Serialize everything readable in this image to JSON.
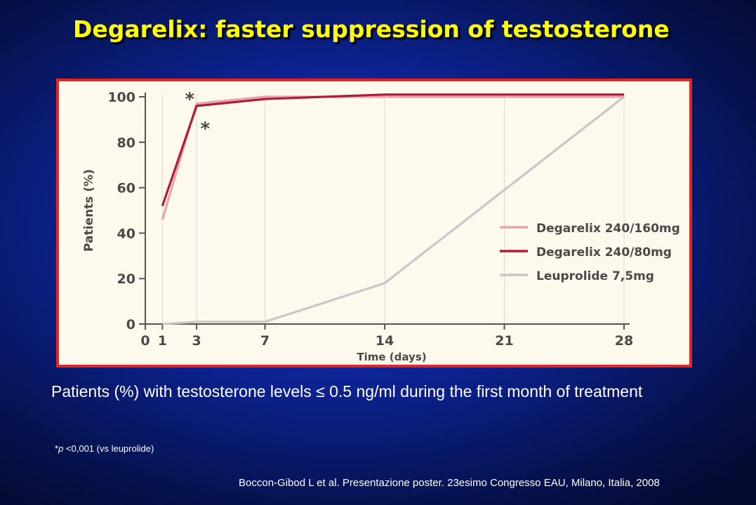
{
  "slide": {
    "title": "Degarelix: faster suppression of testosterone",
    "caption": "Patients (%) with testosterone levels ≤ 0.5 ng/ml during the first month of treatment",
    "footnote_marker": "*",
    "footnote_p": "p",
    "footnote_rest": " <0,001 (vs leuprolide)",
    "citation": "Boccon-Gibod L et al. Presentazione poster. 23esimo Congresso EAU, Milano, Italia, 2008"
  },
  "chart_data": {
    "type": "line",
    "xlabel": "Time (days)",
    "ylabel": "Patients (%)",
    "xlim": [
      0,
      28
    ],
    "ylim": [
      0,
      100
    ],
    "xticks": [
      0,
      1,
      3,
      7,
      14,
      21,
      28
    ],
    "yticks": [
      0,
      20,
      40,
      60,
      80,
      100
    ],
    "grid": "vertical",
    "legend_position": "right",
    "series": [
      {
        "name": "Degarelix 240/160mg",
        "color": "#e8a4a8",
        "x": [
          1,
          3,
          7,
          14,
          28
        ],
        "y": [
          46,
          97,
          100,
          100,
          100
        ]
      },
      {
        "name": "Degarelix 240/80mg",
        "color": "#b01c3a",
        "x": [
          1,
          3,
          7,
          14,
          28
        ],
        "y": [
          52,
          96,
          99,
          101,
          101
        ]
      },
      {
        "name": "Leuprolide 7,5mg",
        "color": "#c8c8c8",
        "x": [
          1,
          3,
          7,
          14,
          28
        ],
        "y": [
          0,
          1,
          1,
          18,
          100
        ]
      }
    ],
    "annotations": [
      {
        "text": "*",
        "x": 2.6,
        "y": 100
      },
      {
        "text": "*",
        "x": 3.5,
        "y": 87
      }
    ]
  }
}
